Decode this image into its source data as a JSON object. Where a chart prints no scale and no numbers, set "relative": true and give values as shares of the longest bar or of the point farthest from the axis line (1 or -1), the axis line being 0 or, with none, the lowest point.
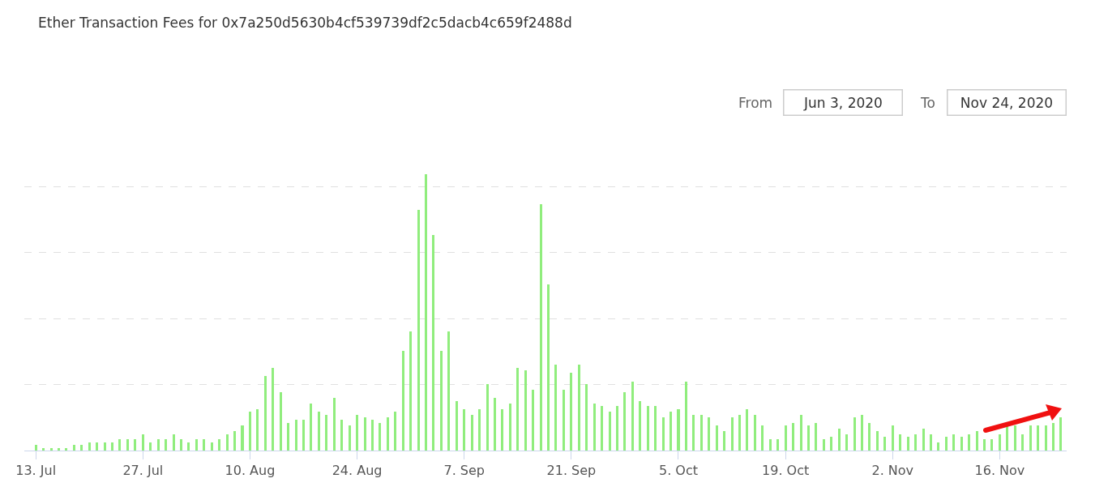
{
  "chart_data": {
    "type": "bar",
    "title": "Ether Transaction Fees for 0x7a250d5630b4cf539739df2c5dacb4c659f2488d",
    "relative": true,
    "color": "#90ed7d",
    "grid": "y",
    "x": [
      "2020-07-13",
      "2020-07-14",
      "2020-07-15",
      "2020-07-16",
      "2020-07-17",
      "2020-07-18",
      "2020-07-19",
      "2020-07-20",
      "2020-07-21",
      "2020-07-22",
      "2020-07-23",
      "2020-07-24",
      "2020-07-25",
      "2020-07-26",
      "2020-07-27",
      "2020-07-28",
      "2020-07-29",
      "2020-07-30",
      "2020-07-31",
      "2020-08-01",
      "2020-08-02",
      "2020-08-03",
      "2020-08-04",
      "2020-08-05",
      "2020-08-06",
      "2020-08-07",
      "2020-08-08",
      "2020-08-09",
      "2020-08-10",
      "2020-08-11",
      "2020-08-12",
      "2020-08-13",
      "2020-08-14",
      "2020-08-15",
      "2020-08-16",
      "2020-08-17",
      "2020-08-18",
      "2020-08-19",
      "2020-08-20",
      "2020-08-21",
      "2020-08-22",
      "2020-08-23",
      "2020-08-24",
      "2020-08-25",
      "2020-08-26",
      "2020-08-27",
      "2020-08-28",
      "2020-08-29",
      "2020-08-30",
      "2020-08-31",
      "2020-09-01",
      "2020-09-02",
      "2020-09-03",
      "2020-09-04",
      "2020-09-05",
      "2020-09-06",
      "2020-09-07",
      "2020-09-08",
      "2020-09-09",
      "2020-09-10",
      "2020-09-11",
      "2020-09-12",
      "2020-09-13",
      "2020-09-14",
      "2020-09-15",
      "2020-09-16",
      "2020-09-17",
      "2020-09-18",
      "2020-09-19",
      "2020-09-20",
      "2020-09-21",
      "2020-09-22",
      "2020-09-23",
      "2020-09-24",
      "2020-09-25",
      "2020-09-26",
      "2020-09-27",
      "2020-09-28",
      "2020-09-29",
      "2020-09-30",
      "2020-10-01",
      "2020-10-02",
      "2020-10-03",
      "2020-10-04",
      "2020-10-05",
      "2020-10-06",
      "2020-10-07",
      "2020-10-08",
      "2020-10-09",
      "2020-10-10",
      "2020-10-11",
      "2020-10-12",
      "2020-10-13",
      "2020-10-14",
      "2020-10-15",
      "2020-10-16",
      "2020-10-17",
      "2020-10-18",
      "2020-10-19",
      "2020-10-20",
      "2020-10-21",
      "2020-10-22",
      "2020-10-23",
      "2020-10-24",
      "2020-10-25",
      "2020-10-26",
      "2020-10-27",
      "2020-10-28",
      "2020-10-29",
      "2020-10-30",
      "2020-10-31",
      "2020-11-01",
      "2020-11-02",
      "2020-11-03",
      "2020-11-04",
      "2020-11-05",
      "2020-11-06",
      "2020-11-07",
      "2020-11-08",
      "2020-11-09",
      "2020-11-10",
      "2020-11-11",
      "2020-11-12",
      "2020-11-13",
      "2020-11-14",
      "2020-11-15",
      "2020-11-16",
      "2020-11-17",
      "2020-11-18",
      "2020-11-19",
      "2020-11-20",
      "2020-11-21",
      "2020-11-22",
      "2020-11-23",
      "2020-11-24"
    ],
    "values": [
      0.02,
      0.01,
      0.01,
      0.01,
      0.01,
      0.02,
      0.02,
      0.03,
      0.03,
      0.03,
      0.03,
      0.04,
      0.04,
      0.04,
      0.06,
      0.03,
      0.04,
      0.04,
      0.06,
      0.04,
      0.03,
      0.04,
      0.04,
      0.03,
      0.04,
      0.06,
      0.07,
      0.09,
      0.14,
      0.15,
      0.27,
      0.3,
      0.21,
      0.1,
      0.11,
      0.11,
      0.17,
      0.14,
      0.13,
      0.19,
      0.11,
      0.09,
      0.13,
      0.12,
      0.11,
      0.1,
      0.12,
      0.14,
      0.36,
      0.43,
      0.87,
      1,
      0.78,
      0.36,
      0.43,
      0.18,
      0.15,
      0.13,
      0.15,
      0.24,
      0.19,
      0.15,
      0.17,
      0.3,
      0.29,
      0.22,
      0.89,
      0.6,
      0.31,
      0.22,
      0.28,
      0.31,
      0.24,
      0.17,
      0.16,
      0.14,
      0.16,
      0.21,
      0.25,
      0.18,
      0.16,
      0.16,
      0.12,
      0.14,
      0.15,
      0.25,
      0.13,
      0.13,
      0.12,
      0.09,
      0.07,
      0.12,
      0.13,
      0.15,
      0.13,
      0.09,
      0.04,
      0.04,
      0.09,
      0.1,
      0.13,
      0.09,
      0.1,
      0.04,
      0.05,
      0.08,
      0.06,
      0.12,
      0.13,
      0.1,
      0.07,
      0.05,
      0.09,
      0.06,
      0.05,
      0.06,
      0.08,
      0.06,
      0.03,
      0.05,
      0.06,
      0.05,
      0.06,
      0.07,
      0.04,
      0.04,
      0.06,
      0.09,
      0.09,
      0.06,
      0.09,
      0.09,
      0.09,
      0.1,
      0.12
    ],
    "xlim": [
      "2020-07-11T12:00",
      "2020-11-24T18:00"
    ],
    "xticks": [
      {
        "value": "2020-07-13",
        "label": "13. Jul"
      },
      {
        "value": "2020-07-27",
        "label": "27. Jul"
      },
      {
        "value": "2020-08-10",
        "label": "10. Aug"
      },
      {
        "value": "2020-08-24",
        "label": "24. Aug"
      },
      {
        "value": "2020-09-07",
        "label": "7. Sep"
      },
      {
        "value": "2020-09-21",
        "label": "21. Sep"
      },
      {
        "value": "2020-10-05",
        "label": "5. Oct"
      },
      {
        "value": "2020-10-19",
        "label": "19. Oct"
      },
      {
        "value": "2020-11-02",
        "label": "2. Nov"
      },
      {
        "value": "2020-11-16",
        "label": "16. Nov"
      }
    ],
    "annotations": [
      "From",
      "Jun 3, 2020",
      "To",
      "Nov 24, 2020"
    ]
  }
}
